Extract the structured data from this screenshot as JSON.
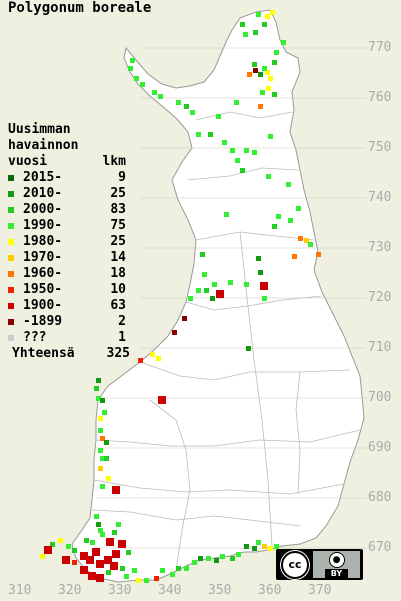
{
  "title": "Polygonum boreale",
  "legend": {
    "heading_line1": "Uusimman",
    "heading_line2": "havainnon",
    "heading_col1": "vuosi",
    "heading_col2": "lkm",
    "rows": [
      {
        "label": "2015-",
        "count": "9",
        "color": "#0a6a0a"
      },
      {
        "label": "2010-",
        "count": "25",
        "color": "#119911"
      },
      {
        "label": "2000-",
        "count": "83",
        "color": "#22cc22"
      },
      {
        "label": "1990-",
        "count": "75",
        "color": "#33ee33"
      },
      {
        "label": "1980-",
        "count": "25",
        "color": "#ffff00"
      },
      {
        "label": "1970-",
        "count": "14",
        "color": "#ffcc00"
      },
      {
        "label": "1960-",
        "count": "18",
        "color": "#ff7700"
      },
      {
        "label": "1950-",
        "count": "10",
        "color": "#ee2200"
      },
      {
        "label": "1900-",
        "count": "63",
        "color": "#cc0000"
      },
      {
        "label": "-1899",
        "count": "2",
        "color": "#880000"
      },
      {
        "label": "???",
        "count": "1",
        "color": "#cccccc"
      }
    ],
    "total_label": "Yhteensä",
    "total_count": "325"
  },
  "y_ticks": [
    "770",
    "760",
    "750",
    "740",
    "730",
    "720",
    "710",
    "700",
    "690",
    "680",
    "670"
  ],
  "x_ticks": [
    "310",
    "320",
    "330",
    "340",
    "350",
    "360",
    "370"
  ],
  "license": {
    "badge_text": "BY",
    "logo_text": "cc"
  },
  "colors": {
    "background": "#f0f0e0",
    "land": "#ffffff",
    "grid": "#bbbbbb",
    "border": "#aaaaaa",
    "tick": "#aaaaaa"
  }
}
